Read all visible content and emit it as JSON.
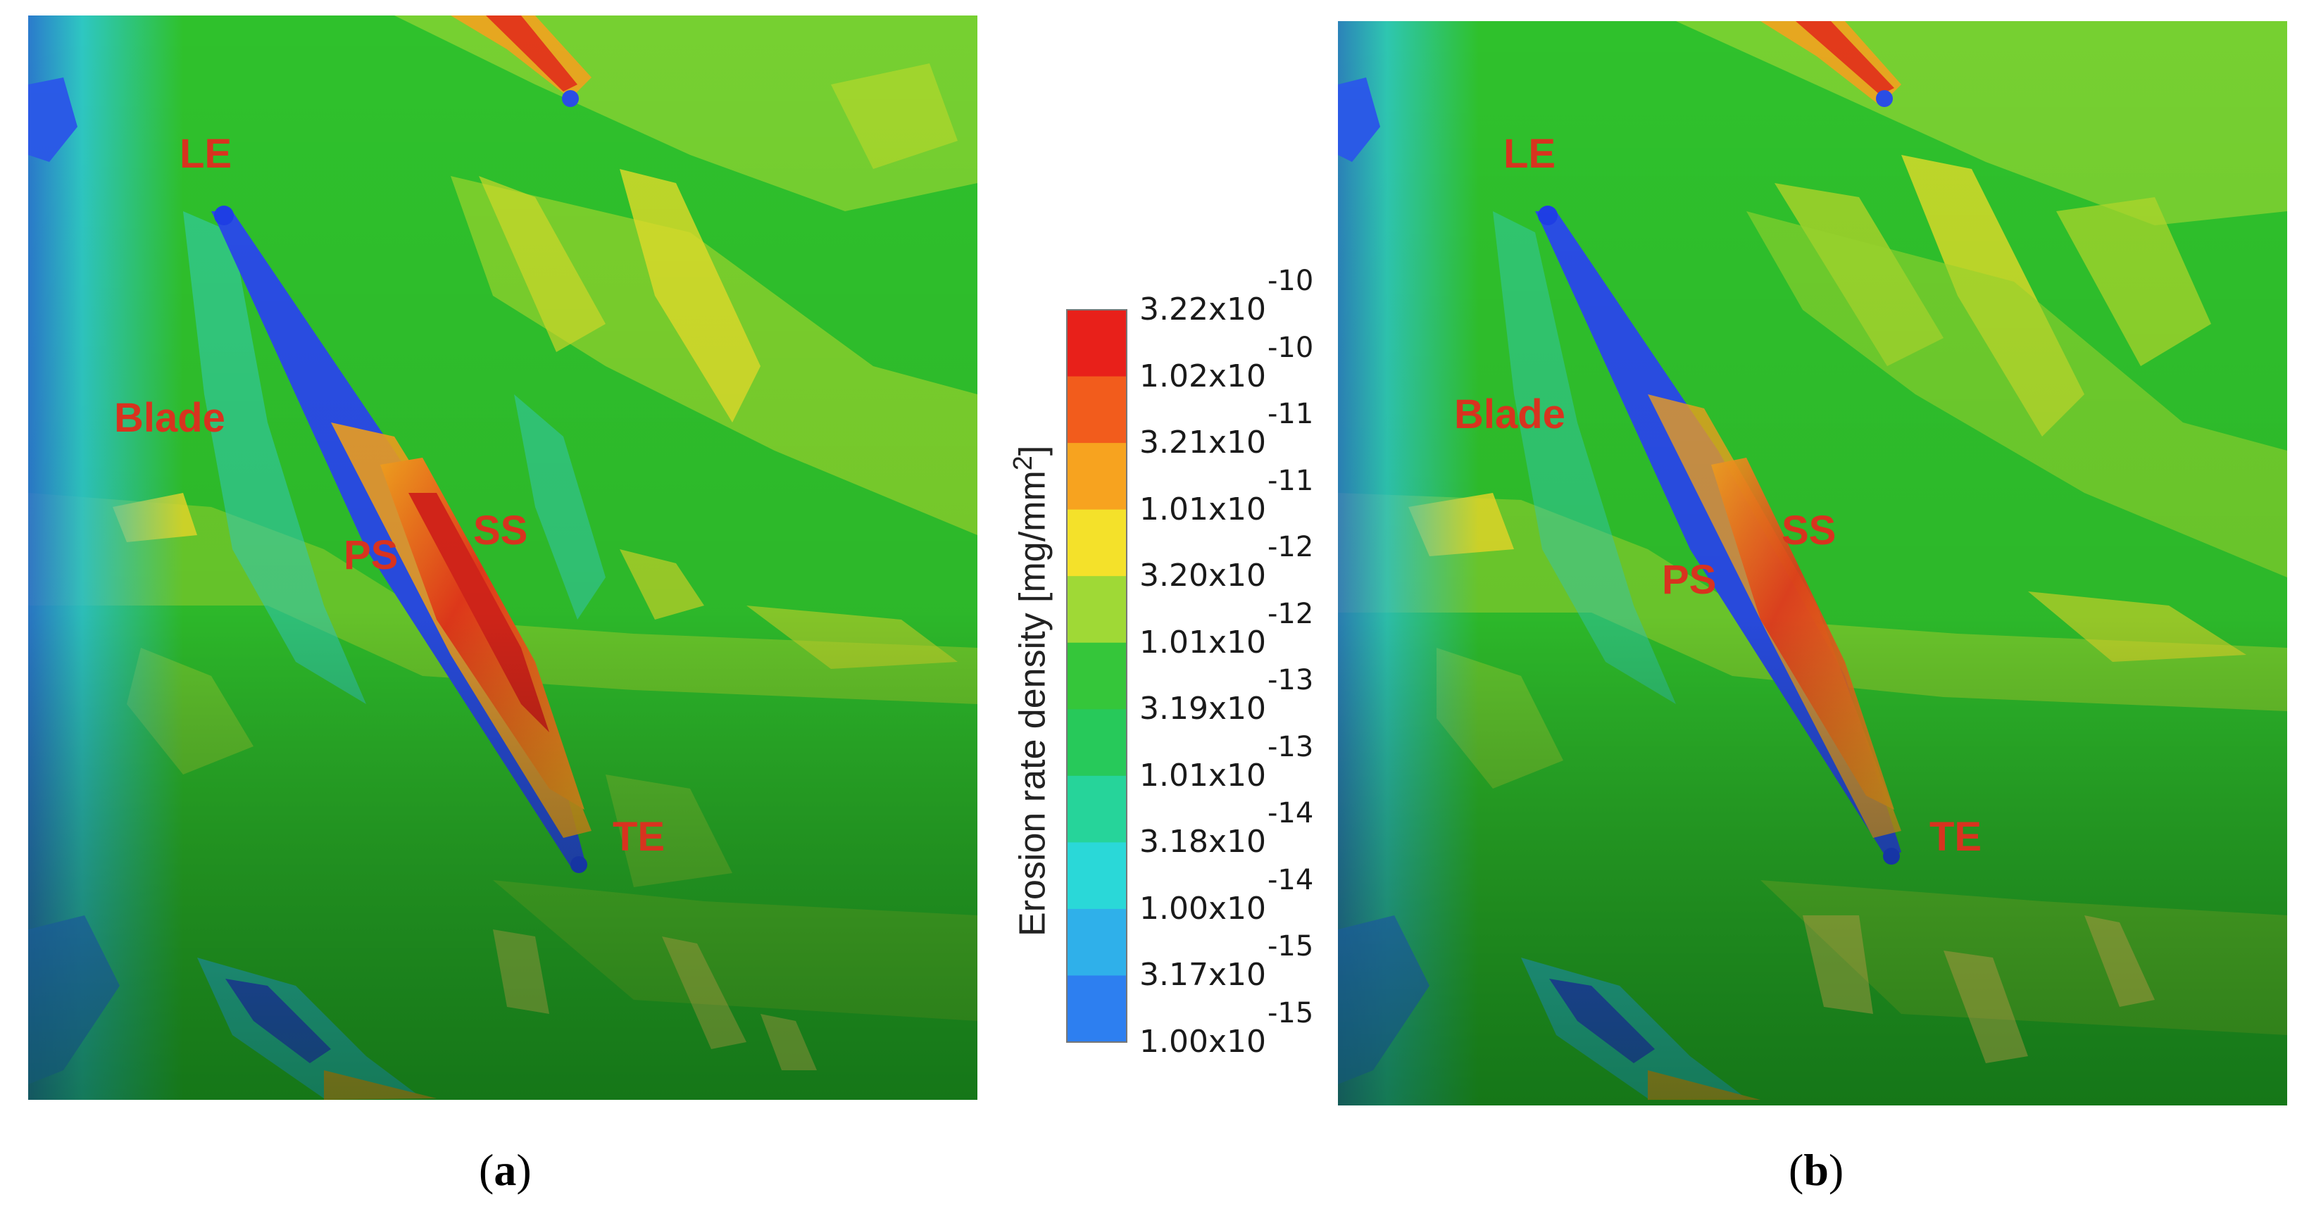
{
  "panels": [
    {
      "id": "a",
      "caption_open": "(",
      "caption_letter": "a",
      "caption_close": ")",
      "labels": {
        "le": "LE",
        "blade": "Blade",
        "ps": "PS",
        "ss": "SS",
        "te": "TE"
      }
    },
    {
      "id": "b",
      "caption_open": "(",
      "caption_letter": "b",
      "caption_close": ")",
      "labels": {
        "le": "LE",
        "blade": "Blade",
        "ps": "PS",
        "ss": "SS",
        "te": "TE"
      }
    }
  ],
  "colorbar": {
    "title": "Erosion rate density [mg/mm",
    "title_sup": "2",
    "title_close": "]",
    "ticks": [
      {
        "mantissa": "3.22x10",
        "exponent": "-10",
        "color": "#e8201a"
      },
      {
        "mantissa": "1.02x10",
        "exponent": "-10",
        "color": "#f25c1c"
      },
      {
        "mantissa": "3.21x10",
        "exponent": "-11",
        "color": "#f7a31f"
      },
      {
        "mantissa": "1.01x10",
        "exponent": "-11",
        "color": "#f4e12a"
      },
      {
        "mantissa": "3.20x10",
        "exponent": "-12",
        "color": "#9fd936"
      },
      {
        "mantissa": "1.01x10",
        "exponent": "-12",
        "color": "#35c63a"
      },
      {
        "mantissa": "3.19x10",
        "exponent": "-13",
        "color": "#27c95a"
      },
      {
        "mantissa": "1.01x10",
        "exponent": "-13",
        "color": "#26d49a"
      },
      {
        "mantissa": "3.18x10",
        "exponent": "-14",
        "color": "#2ad8d8"
      },
      {
        "mantissa": "1.00x10",
        "exponent": "-14",
        "color": "#2fb0ea"
      },
      {
        "mantissa": "3.17x10",
        "exponent": "-15",
        "color": "#2d7ff0"
      },
      {
        "mantissa": "1.00x10",
        "exponent": "-15",
        "color": "#1f3fe8"
      }
    ]
  },
  "colors": {
    "field_green": "#2fc12c",
    "field_yellowgreen": "#9ad62e",
    "field_yellow": "#e6dc2a",
    "field_cyan": "#37d4c4",
    "field_blue": "#2a55e6",
    "field_dark": "#0a6a1a",
    "hot_red": "#e63a1b",
    "label_red": "#d8331f"
  }
}
